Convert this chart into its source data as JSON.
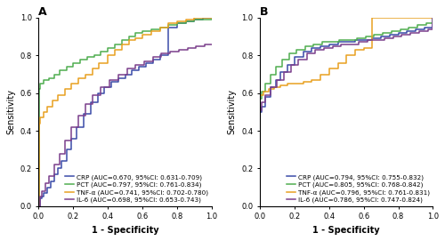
{
  "panel_A": {
    "title": "A",
    "xlabel": "1 - Specificity",
    "ylabel": "Sensitivity",
    "curves": [
      {
        "label": "CRP (AUC=0.670, 95%CI: 0.631-0.709)",
        "color": "#3B4BA8",
        "auc": 0.67
      },
      {
        "label": "PCT (AUC=0.797, 95%CI: 0.761-0.834)",
        "color": "#4FAD50",
        "auc": 0.797
      },
      {
        "label": "TNF-α (AUC=0.741, 95%CI: 0.702-0.780)",
        "color": "#E8A020",
        "auc": 0.741
      },
      {
        "label": "IL-6 (AUC=0.698, 95%CI: 0.653-0.743)",
        "color": "#7B3F8C",
        "auc": 0.698
      }
    ]
  },
  "panel_B": {
    "title": "B",
    "xlabel": "1 - Specificity",
    "ylabel": "Sensitivity",
    "curves": [
      {
        "label": "CRP (AUC=0.794, 95%CI: 0.755-0.832)",
        "color": "#3B4BA8",
        "auc": 0.794
      },
      {
        "label": "PCT (AUC=0.805, 95%CI: 0.768-0.842)",
        "color": "#4FAD50",
        "auc": 0.805
      },
      {
        "label": "TNF-α (AUC=0.796, 95%CI: 0.761-0.831)",
        "color": "#E8A020",
        "auc": 0.796
      },
      {
        "label": "IL-6 (AUC=0.786, 95%CI: 0.747-0.824)",
        "color": "#7B3F8C",
        "auc": 0.786
      }
    ]
  },
  "figsize": [
    5.0,
    2.71
  ],
  "dpi": 100,
  "legend_font_size": 5.2,
  "axis_label_size": 7,
  "tick_size": 6
}
